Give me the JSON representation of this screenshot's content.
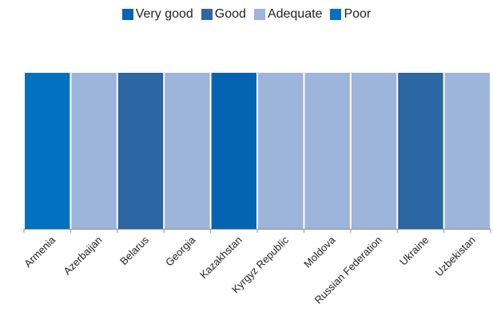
{
  "chart_data": {
    "type": "bar",
    "title": "",
    "xlabel": "",
    "ylabel": "",
    "categories": [
      "Armenia",
      "Azerbaijan",
      "Belarus",
      "Georgia",
      "Kazakhstan",
      "Kyrgyz Republic",
      "Moldova",
      "Russian Federation",
      "Ukraine",
      "Uzbekistan"
    ],
    "legend": [
      {
        "name": "Very good",
        "color": "#0563b3"
      },
      {
        "name": "Good",
        "color": "#2c66a3"
      },
      {
        "name": "Adequate",
        "color": "#9db4db"
      },
      {
        "name": "Poor",
        "color": "#0272c0"
      }
    ],
    "ratings": [
      "Poor",
      "Adequate",
      "Good",
      "Adequate",
      "Very good",
      "Adequate",
      "Adequate",
      "Adequate",
      "Good",
      "Adequate"
    ],
    "values": [
      1,
      1,
      1,
      1,
      1,
      1,
      1,
      1,
      1,
      1
    ],
    "ylim": [
      0,
      1
    ],
    "legend_position": "top",
    "grid": false
  }
}
